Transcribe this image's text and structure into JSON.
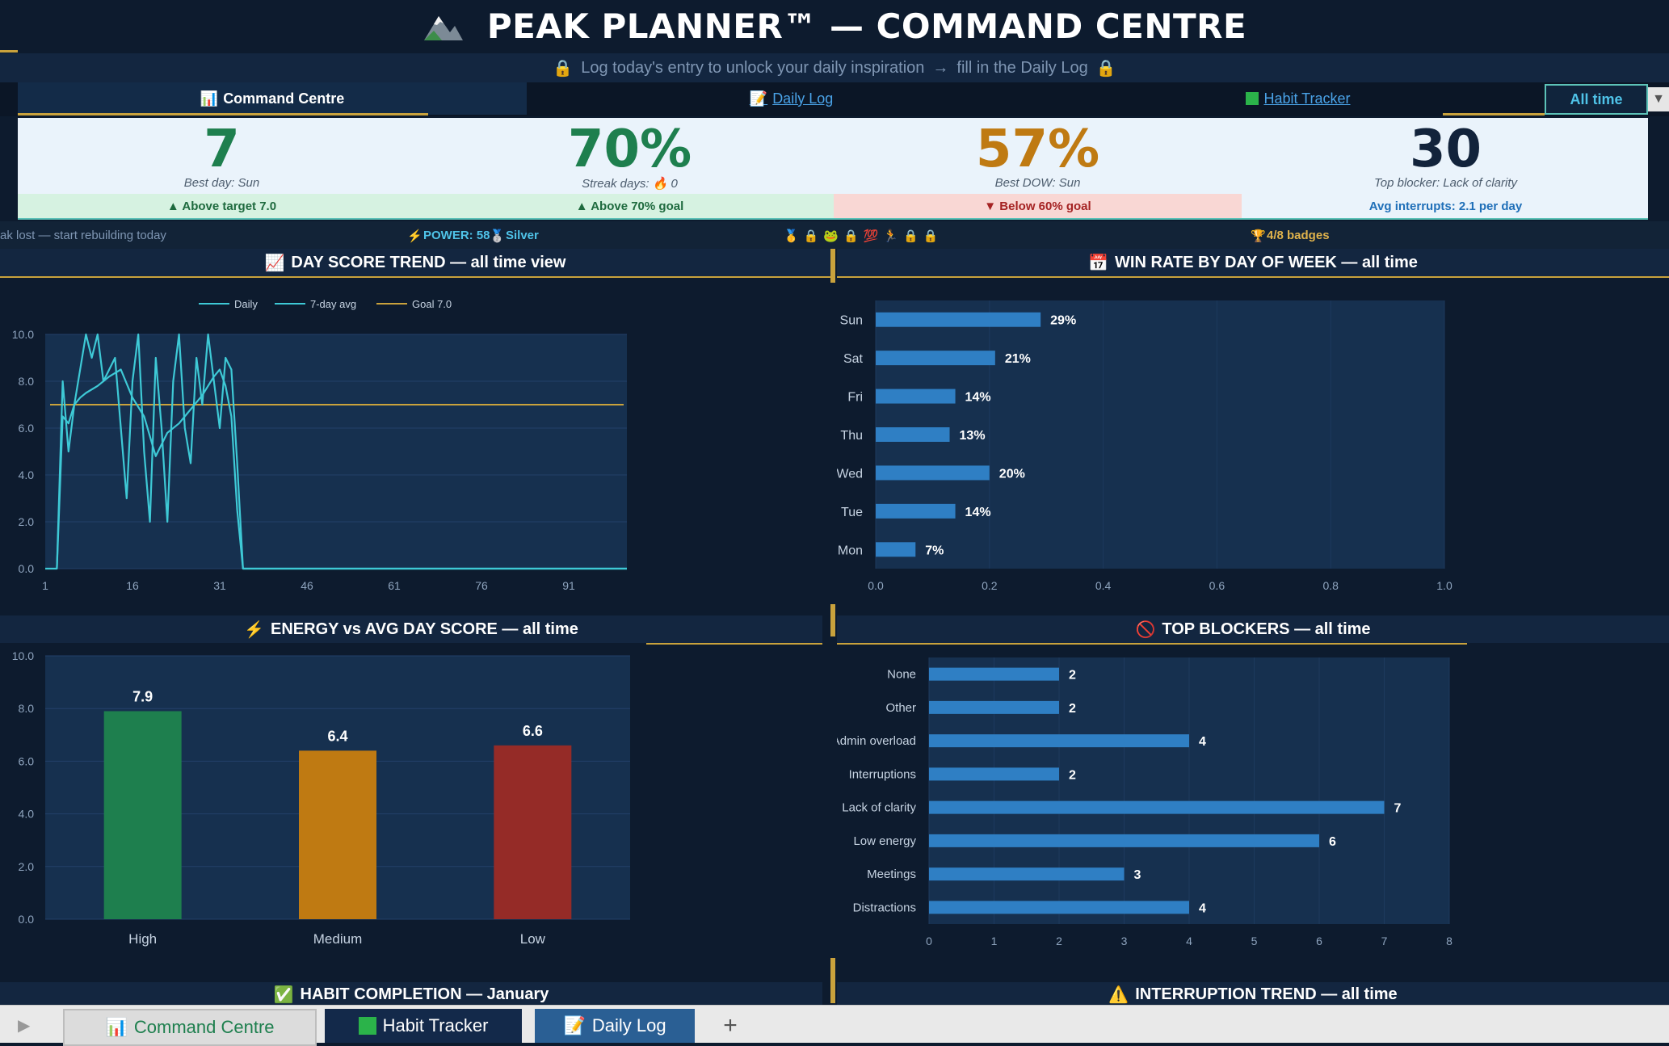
{
  "title": {
    "main": "PEAK PLANNER™   —   COMMAND CENTRE"
  },
  "inspiration": {
    "text": "Log today's entry to unlock your daily inspiration",
    "link_text": "fill in the Daily Log"
  },
  "tabs": [
    {
      "label": "Command Centre",
      "icon": "bar-chart-icon"
    },
    {
      "label": "Daily Log",
      "icon": "memo-icon"
    },
    {
      "label": "Habit Tracker",
      "icon": "green-square-icon"
    }
  ],
  "range_selector": {
    "value": "All time"
  },
  "kpis": [
    {
      "value": "7",
      "sub": "Best day: Sun",
      "band": "▲ Above target 7.0",
      "color": "#1e7f4e",
      "band_bg": "#d6f2e1",
      "band_color": "#1e6a3e"
    },
    {
      "value": "70%",
      "sub_label": "Streak days:",
      "sub_value": "0",
      "band": "▲ Above 70% goal",
      "color": "#1e7f4e",
      "band_bg": "#d6f2e1",
      "band_color": "#1e6a3e"
    },
    {
      "value": "57%",
      "sub": "Best DOW: Sun",
      "band": "▼ Below 60% goal",
      "color": "#bf7a12",
      "band_bg": "#f9d7d4",
      "band_color": "#a52323"
    },
    {
      "value": "30",
      "sub": "Top blocker: Lack of clarity",
      "band": "Avg interrupts: 2.1 per day",
      "color": "#12233b",
      "band_bg": "#eaf3fb",
      "band_color": "#1f6fb8"
    }
  ],
  "status": {
    "streak_msg": "ak lost — start rebuilding today",
    "power_label": "POWER: 58",
    "tier": "Silver",
    "badges_count": "4/8 badges"
  },
  "sections": {
    "trend": "DAY SCORE TREND  —  all time view",
    "winrate": "WIN RATE BY DAY OF WEEK  —  all time",
    "energy": "ENERGY vs AVG DAY SCORE  —  all time",
    "blockers": "TOP BLOCKERS  —  all time",
    "habit": "HABIT COMPLETION  —  January",
    "interrupt": "INTERRUPTION TREND  —  all time"
  },
  "chart_data": [
    {
      "type": "line",
      "title": "DAY SCORE TREND — all time view",
      "legend": [
        "Daily",
        "7-day avg",
        "Goal 7.0"
      ],
      "legend_position": "top",
      "x_ticks": [
        1,
        16,
        31,
        46,
        61,
        76,
        91
      ],
      "y_ticks": [
        0.0,
        2.0,
        4.0,
        6.0,
        8.0,
        10.0
      ],
      "xlim": [
        1,
        101
      ],
      "ylim": [
        0,
        10
      ],
      "goal": 7.0,
      "series": [
        {
          "name": "Daily",
          "color": "#3ec9d6",
          "x": [
            1,
            3,
            4,
            5,
            6,
            7,
            8,
            9,
            10,
            11,
            12,
            13,
            14,
            15,
            16,
            17,
            18,
            19,
            20,
            21,
            22,
            23,
            24,
            25,
            26,
            27,
            28,
            29,
            30,
            31,
            32,
            33,
            34,
            35,
            36,
            40,
            60,
            80,
            101
          ],
          "y": [
            0,
            0,
            8,
            5,
            7,
            8.5,
            10,
            9,
            10,
            8,
            8.5,
            9,
            6,
            3,
            8,
            10,
            5,
            2,
            9,
            6,
            2,
            8,
            10,
            6,
            4.5,
            9,
            7,
            10,
            8,
            6,
            9,
            8.5,
            4.5,
            0,
            0,
            0,
            0,
            0,
            0
          ]
        },
        {
          "name": "7-day avg",
          "color": "#3ec9d6",
          "x": [
            3,
            4,
            5,
            6,
            7,
            8,
            10,
            12,
            14,
            16,
            18,
            20,
            22,
            24,
            26,
            28,
            30,
            31,
            32,
            33,
            34,
            35,
            36,
            40,
            60,
            80,
            101
          ],
          "y": [
            0,
            6.5,
            6.2,
            7,
            7.3,
            7.5,
            7.8,
            8.2,
            8.5,
            7.3,
            6.5,
            4.8,
            5.8,
            6.2,
            6.8,
            7.4,
            8.2,
            8.5,
            7.8,
            6.5,
            2.5,
            0,
            0,
            0,
            0,
            0,
            0
          ]
        }
      ]
    },
    {
      "type": "bar",
      "orientation": "horizontal",
      "title": "WIN RATE BY DAY OF WEEK — all time",
      "categories": [
        "Sun",
        "Sat",
        "Fri",
        "Thu",
        "Wed",
        "Tue",
        "Mon"
      ],
      "values": [
        0.29,
        0.21,
        0.14,
        0.13,
        0.2,
        0.14,
        0.07
      ],
      "labels": [
        "29%",
        "21%",
        "14%",
        "13%",
        "20%",
        "14%",
        "7%"
      ],
      "x_ticks": [
        0.0,
        0.2,
        0.4,
        0.6,
        0.8,
        1.0
      ],
      "xlim": [
        0,
        1
      ]
    },
    {
      "type": "bar",
      "title": "ENERGY vs AVG DAY SCORE — all time",
      "categories": [
        "High",
        "Medium",
        "Low"
      ],
      "values": [
        7.9,
        6.4,
        6.6
      ],
      "colors": [
        "#1e7f4e",
        "#bf7a12",
        "#952b27"
      ],
      "y_ticks": [
        0.0,
        2.0,
        4.0,
        6.0,
        8.0,
        10.0
      ],
      "ylim": [
        0,
        10
      ]
    },
    {
      "type": "bar",
      "orientation": "horizontal",
      "title": "TOP BLOCKERS — all time",
      "categories": [
        "None",
        "Other",
        "Admin overload",
        "Interruptions",
        "Lack of clarity",
        "Low energy",
        "Meetings",
        "Distractions"
      ],
      "values": [
        2,
        2,
        4,
        2,
        7,
        6,
        3,
        4
      ],
      "x_ticks": [
        0,
        1,
        2,
        3,
        4,
        5,
        6,
        7,
        8
      ],
      "xlim": [
        0,
        8
      ]
    }
  ],
  "sheet_tabs": [
    {
      "label": "Command Centre",
      "icon": "bar-chart-icon"
    },
    {
      "label": "Habit Tracker",
      "icon": "green-square-icon"
    },
    {
      "label": "Daily Log",
      "icon": "memo-icon"
    }
  ],
  "colors": {
    "background": "#0d1b2e",
    "accent": "#c9a23c",
    "bar": "#2f7fc4",
    "line": "#3ec9d6",
    "plot_bg": "#16304f"
  }
}
